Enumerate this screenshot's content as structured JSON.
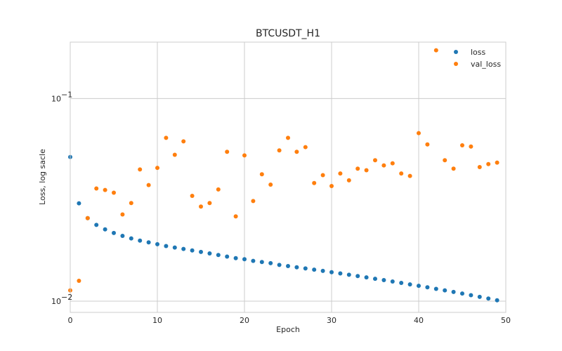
{
  "chart_data": {
    "type": "scatter",
    "title": "BTCUSDT_H1",
    "xlabel": "Epoch",
    "ylabel": "Loss, log sacle",
    "xlim": [
      0,
      50
    ],
    "ylim": [
      0.0088,
      0.19
    ],
    "yscale": "log",
    "xticks": [
      0,
      10,
      20,
      30,
      40,
      50
    ],
    "yticks": [
      {
        "value": 0.01,
        "base": "10",
        "exp": "−2"
      },
      {
        "value": 0.1,
        "base": "10",
        "exp": "−1"
      }
    ],
    "grid": true,
    "legend_position": "top-right",
    "series": [
      {
        "name": "loss",
        "color": "#1f77b4",
        "x": [
          0,
          1,
          2,
          3,
          4,
          5,
          6,
          7,
          8,
          9,
          10,
          11,
          12,
          13,
          14,
          15,
          16,
          17,
          18,
          19,
          20,
          21,
          22,
          23,
          24,
          25,
          26,
          27,
          28,
          29,
          30,
          31,
          32,
          33,
          34,
          35,
          36,
          37,
          38,
          39,
          40,
          41,
          42,
          43,
          44,
          45,
          46,
          47,
          48,
          49
        ],
        "y": [
          0.0515,
          0.0304,
          0.0257,
          0.0238,
          0.0226,
          0.0217,
          0.021,
          0.0204,
          0.0199,
          0.0195,
          0.0191,
          0.0187,
          0.0184,
          0.0181,
          0.0178,
          0.0175,
          0.0172,
          0.0169,
          0.0166,
          0.0163,
          0.0161,
          0.0158,
          0.0156,
          0.0154,
          0.0151,
          0.0149,
          0.0147,
          0.0145,
          0.0143,
          0.0141,
          0.0139,
          0.0137,
          0.0135,
          0.0133,
          0.0131,
          0.0129,
          0.0127,
          0.0125,
          0.0123,
          0.0121,
          0.0119,
          0.0117,
          0.0115,
          0.0113,
          0.0111,
          0.0109,
          0.0107,
          0.0105,
          0.0103,
          0.0101
        ]
      },
      {
        "name": "val_loss",
        "color": "#ff7f0e",
        "x": [
          0,
          1,
          2,
          3,
          4,
          5,
          6,
          7,
          8,
          9,
          10,
          11,
          12,
          13,
          14,
          15,
          16,
          17,
          18,
          19,
          20,
          21,
          22,
          23,
          24,
          25,
          26,
          27,
          28,
          29,
          30,
          31,
          32,
          33,
          34,
          35,
          36,
          37,
          38,
          39,
          40,
          41,
          42,
          43,
          44,
          45,
          46,
          47,
          48,
          49
        ],
        "y": [
          0.0113,
          0.0126,
          0.0257,
          0.036,
          0.0354,
          0.0343,
          0.0268,
          0.0305,
          0.0447,
          0.0374,
          0.0455,
          0.064,
          0.0528,
          0.0615,
          0.0331,
          0.0293,
          0.0305,
          0.0356,
          0.0546,
          0.0262,
          0.0524,
          0.0312,
          0.0423,
          0.0376,
          0.0555,
          0.064,
          0.0546,
          0.0576,
          0.0383,
          0.0419,
          0.037,
          0.0427,
          0.0395,
          0.0451,
          0.0443,
          0.0496,
          0.0468,
          0.0479,
          0.0427,
          0.0415,
          0.0675,
          0.0594,
          0.1732,
          0.0496,
          0.0451,
          0.0588,
          0.058,
          0.0459,
          0.0475,
          0.0483
        ]
      }
    ]
  }
}
